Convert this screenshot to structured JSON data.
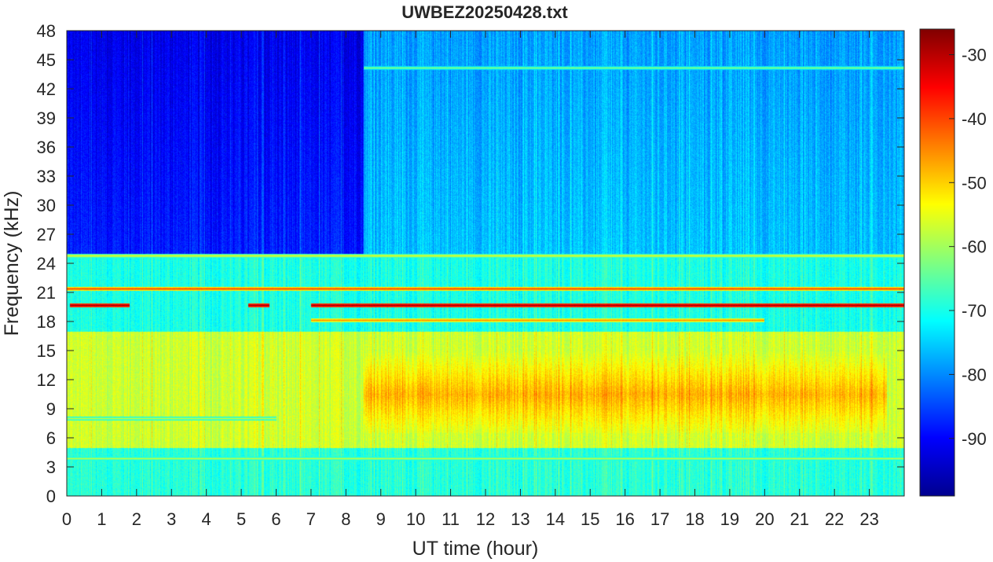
{
  "chart_data": {
    "type": "heatmap",
    "title": "UWBEZ20250428.txt",
    "xlabel": "UT time (hour)",
    "ylabel": "Frequency (kHz)",
    "xlim": [
      0,
      24
    ],
    "ylim": [
      0,
      48
    ],
    "x_ticks": [
      0,
      1,
      2,
      3,
      4,
      5,
      6,
      7,
      8,
      9,
      10,
      11,
      12,
      13,
      14,
      15,
      16,
      17,
      18,
      19,
      20,
      21,
      22,
      23
    ],
    "y_ticks": [
      0,
      3,
      6,
      9,
      12,
      15,
      18,
      21,
      24,
      27,
      30,
      33,
      36,
      39,
      42,
      45,
      48
    ],
    "colorbar": {
      "colormap": "jet",
      "range": [
        -99,
        -26
      ],
      "ticks": [
        -30,
        -40,
        -50,
        -60,
        -70,
        -80,
        -90
      ]
    },
    "band_levels_dB": [
      {
        "freq_kHz": [
          0,
          5
        ],
        "level": -69
      },
      {
        "freq_kHz": [
          5,
          17
        ],
        "level": -57,
        "peak_hours": [
          8.5,
          23.5
        ],
        "peak_level": -48
      },
      {
        "freq_kHz": [
          17,
          25
        ],
        "level": -70
      },
      {
        "freq_kHz": [
          25,
          48
        ],
        "level": -76,
        "quiet_hours": [
          0,
          8.5
        ],
        "quiet_level": -88
      }
    ],
    "tone_lines": [
      {
        "freq_kHz": 19.7,
        "level": -28,
        "hours": [
          [
            0.1,
            1.8
          ],
          [
            5.2,
            5.8
          ],
          [
            7.0,
            24.0
          ]
        ]
      },
      {
        "freq_kHz": 21.4,
        "level": -40,
        "hours": [
          [
            0,
            24
          ]
        ]
      },
      {
        "freq_kHz": 18.2,
        "level": -45,
        "hours": [
          [
            7.0,
            20.0
          ]
        ]
      },
      {
        "freq_kHz": 24.8,
        "level": -55,
        "hours": [
          [
            0,
            24
          ]
        ]
      },
      {
        "freq_kHz": 44.2,
        "level": -62,
        "hours": [
          [
            8.5,
            24.0
          ]
        ]
      },
      {
        "freq_kHz": 3.9,
        "level": -58,
        "hours": [
          [
            0,
            24
          ]
        ]
      },
      {
        "freq_kHz": 8.0,
        "level": -58,
        "hours": [
          [
            0,
            6
          ]
        ]
      }
    ]
  }
}
